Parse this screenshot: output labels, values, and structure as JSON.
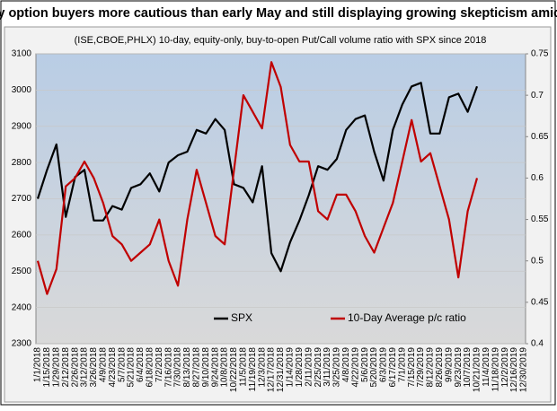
{
  "chart_data": {
    "type": "line",
    "title": "Equity option buyers more cautious than early May and still displaying growing skepticism amid rally",
    "subtitle": "(ISE,CBOE,PHLX) 10-day, equity-only, buy-to-open Put/Call volume ratio with SPX since 2018",
    "categories": [
      "1/1/2018",
      "1/15/2018",
      "1/29/2018",
      "2/12/2018",
      "2/26/2018",
      "3/12/2018",
      "3/26/2018",
      "4/9/2018",
      "4/23/2018",
      "5/7/2018",
      "5/21/2018",
      "6/4/2018",
      "6/18/2018",
      "7/2/2018",
      "7/16/2018",
      "7/30/2018",
      "8/13/2018",
      "8/27/2018",
      "9/10/2018",
      "9/24/2018",
      "10/8/2018",
      "10/22/2018",
      "11/5/2018",
      "11/19/2018",
      "12/3/2018",
      "12/17/2018",
      "12/31/2018",
      "1/14/2019",
      "1/28/2019",
      "2/11/2019",
      "2/25/2019",
      "3/11/2019",
      "3/25/2019",
      "4/8/2019",
      "4/22/2019",
      "5/6/2019",
      "5/20/2019",
      "6/3/2019",
      "6/17/2019",
      "7/1/2019",
      "7/15/2019",
      "7/29/2019",
      "8/12/2019",
      "8/26/2019",
      "9/9/2019",
      "9/23/2019",
      "10/7/2019",
      "10/21/2019",
      "11/4/2019",
      "11/18/2019",
      "12/2/2019",
      "12/16/2019",
      "12/30/2019"
    ],
    "series": [
      {
        "name": "SPX",
        "color": "#000000",
        "axis": "y",
        "values": [
          2700,
          2780,
          2850,
          2650,
          2760,
          2780,
          2640,
          2640,
          2680,
          2670,
          2730,
          2740,
          2770,
          2720,
          2800,
          2820,
          2830,
          2890,
          2880,
          2920,
          2890,
          2740,
          2730,
          2690,
          2790,
          2550,
          2500,
          2580,
          2640,
          2710,
          2790,
          2780,
          2810,
          2890,
          2920,
          2930,
          2830,
          2750,
          2890,
          2960,
          3010,
          3020,
          2880,
          2880,
          2980,
          2990,
          2940,
          3010,
          null,
          null,
          null,
          null,
          null
        ]
      },
      {
        "name": "10-Day Average p/c ratio",
        "color": "#c00000",
        "axis": "y2",
        "values": [
          0.5,
          0.46,
          0.49,
          0.59,
          0.6,
          0.62,
          0.6,
          0.57,
          0.53,
          0.52,
          0.5,
          0.51,
          0.52,
          0.55,
          0.5,
          0.47,
          0.55,
          0.61,
          0.57,
          0.53,
          0.52,
          0.61,
          0.7,
          0.68,
          0.66,
          0.74,
          0.71,
          0.64,
          0.62,
          0.62,
          0.56,
          0.55,
          0.58,
          0.58,
          0.56,
          0.53,
          0.51,
          0.54,
          0.57,
          0.62,
          0.67,
          0.62,
          0.63,
          0.59,
          0.55,
          0.48,
          0.56,
          0.6,
          null,
          null,
          null,
          null,
          null
        ]
      }
    ],
    "ylim": [
      2300,
      3100
    ],
    "yticks": [
      2300,
      2400,
      2500,
      2600,
      2700,
      2800,
      2900,
      3000,
      3100
    ],
    "y2lim": [
      0.4,
      0.75
    ],
    "y2ticks": [
      0.4,
      0.45,
      0.5,
      0.55,
      0.6,
      0.65,
      0.7,
      0.75
    ],
    "grid": true,
    "legend": "bottom"
  }
}
